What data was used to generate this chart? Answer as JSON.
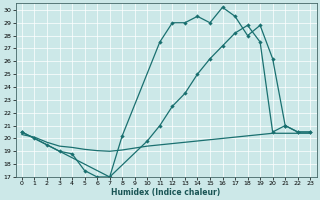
{
  "xlabel": "Humidex (Indice chaleur)",
  "bg_color": "#cce8e8",
  "grid_color": "#ffffff",
  "line_color": "#1a7070",
  "xlim": [
    -0.5,
    23.5
  ],
  "ylim": [
    17,
    30.5
  ],
  "xticks": [
    0,
    1,
    2,
    3,
    4,
    5,
    6,
    7,
    8,
    9,
    10,
    11,
    12,
    13,
    14,
    15,
    16,
    17,
    18,
    19,
    20,
    21,
    22,
    23
  ],
  "yticks": [
    17,
    18,
    19,
    20,
    21,
    22,
    23,
    24,
    25,
    26,
    27,
    28,
    29,
    30
  ],
  "c1_x": [
    0,
    1,
    2,
    3,
    4,
    5,
    6,
    7,
    8,
    11,
    12,
    13,
    14,
    15,
    16,
    17,
    18,
    19,
    20,
    21,
    22,
    23
  ],
  "c1_y": [
    20.5,
    20.0,
    19.5,
    19.0,
    18.8,
    17.5,
    17.0,
    17.0,
    20.2,
    27.5,
    29.0,
    29.0,
    29.5,
    29.0,
    30.2,
    29.5,
    28.0,
    28.8,
    26.2,
    21.0,
    20.5,
    20.5
  ],
  "c2_x": [
    0,
    7,
    10,
    11,
    12,
    13,
    14,
    15,
    16,
    17,
    18,
    19,
    20,
    21,
    22,
    23
  ],
  "c2_y": [
    20.5,
    17.0,
    19.8,
    21.0,
    22.5,
    23.5,
    25.0,
    26.2,
    27.2,
    28.2,
    28.8,
    27.5,
    20.5,
    21.0,
    20.5,
    20.5
  ],
  "c3_x": [
    0,
    1,
    2,
    3,
    4,
    5,
    6,
    7,
    8,
    9,
    10,
    11,
    12,
    13,
    14,
    15,
    16,
    17,
    18,
    19,
    20,
    21,
    22,
    23
  ],
  "c3_y": [
    20.3,
    20.1,
    19.7,
    19.4,
    19.3,
    19.15,
    19.05,
    19.0,
    19.1,
    19.25,
    19.4,
    19.5,
    19.6,
    19.7,
    19.8,
    19.9,
    20.0,
    20.1,
    20.2,
    20.3,
    20.4,
    20.4,
    20.4,
    20.4
  ]
}
